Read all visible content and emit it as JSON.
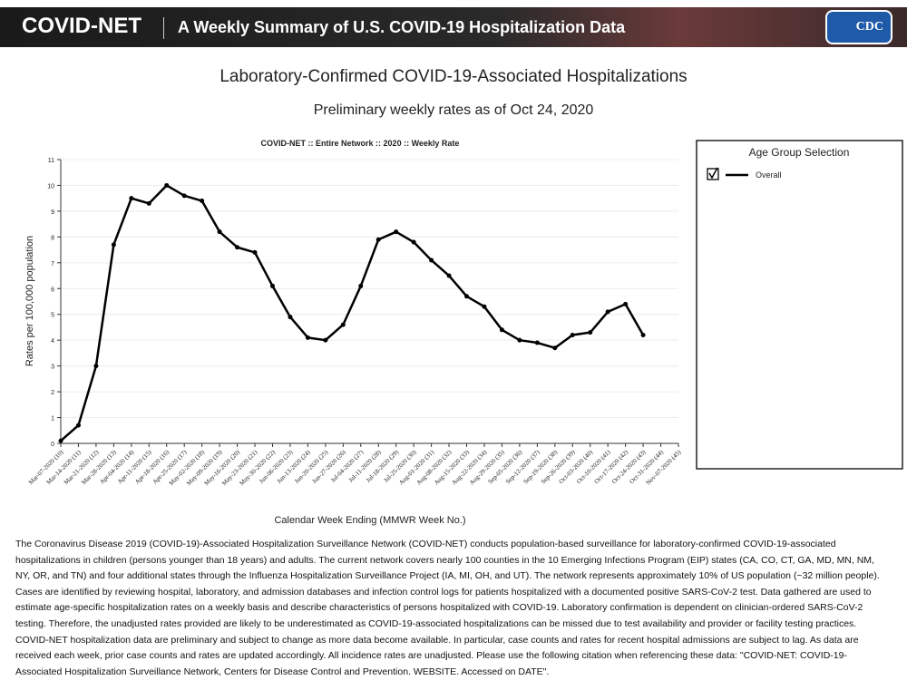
{
  "header": {
    "brand": "COVID-NET",
    "title": "A Weekly Summary of U.S. COVID-19 Hospitalization Data",
    "logo": "CDC"
  },
  "page_title": "Laboratory-Confirmed COVID-19-Associated Hospitalizations",
  "page_subtitle": "Preliminary weekly rates as of Oct 24, 2020",
  "chart_data": {
    "type": "line",
    "title": "COVID-NET :: Entire Network :: 2020 :: Weekly Rate",
    "y_label": "Rates per 100,000 population",
    "x_label": "Calendar Week Ending (MMWR Week No.)",
    "categories": [
      "Mar-07-2020 (10)",
      "Mar-14-2020 (11)",
      "Mar-21-2020 (12)",
      "Mar-28-2020 (13)",
      "Apr-04-2020 (14)",
      "Apr-11-2020 (15)",
      "Apr-18-2020 (16)",
      "Apr-25-2020 (17)",
      "May-02-2020 (18)",
      "May-09-2020 (19)",
      "May-16-2020 (20)",
      "May-23-2020 (21)",
      "May-30-2020 (22)",
      "Jun-06-2020 (23)",
      "Jun-13-2020 (24)",
      "Jun-20-2020 (25)",
      "Jun-27-2020 (26)",
      "Jul-04-2020 (27)",
      "Jul-11-2020 (28)",
      "Jul-18-2020 (29)",
      "Jul-25-2020 (30)",
      "Aug-01-2020 (31)",
      "Aug-08-2020 (32)",
      "Aug-15-2020 (33)",
      "Aug-22-2020 (34)",
      "Aug-29-2020 (35)",
      "Sep-05-2020 (36)",
      "Sep-12-2020 (37)",
      "Sep-19-2020 (38)",
      "Sep-26-2020 (39)",
      "Oct-03-2020 (40)",
      "Oct-10-2020 (41)",
      "Oct-17-2020 (42)",
      "Oct-24-2020 (43)",
      "Oct-31-2020 (44)",
      "Nov-07-2020 (45)"
    ],
    "series": [
      {
        "name": "Overall",
        "color": "#000000",
        "values": [
          0.1,
          0.7,
          3.0,
          7.7,
          9.5,
          9.3,
          10.0,
          9.6,
          9.4,
          8.2,
          7.6,
          7.4,
          6.1,
          4.9,
          4.1,
          4.0,
          4.6,
          6.1,
          7.9,
          8.2,
          7.8,
          7.1,
          6.5,
          5.7,
          5.3,
          4.4,
          4.0,
          3.9,
          3.7,
          4.2,
          4.3,
          5.1,
          5.4,
          4.2,
          null,
          null
        ]
      }
    ],
    "ylim": [
      0,
      11
    ],
    "yticks": [
      0,
      1,
      2,
      3,
      4,
      5,
      6,
      7,
      8,
      9,
      10,
      11
    ],
    "grid": true
  },
  "legend_panel": {
    "title": "Age Group Selection"
  },
  "description": "The Coronavirus Disease 2019 (COVID-19)-Associated Hospitalization Surveillance Network (COVID-NET) conducts population-based surveillance for laboratory-confirmed COVID-19-associated hospitalizations in children (persons younger than 18 years) and adults. The current network covers nearly 100 counties in the 10 Emerging Infections Program (EIP) states (CA, CO, CT, GA, MD, MN, NM, NY, OR, and TN) and four additional states through the Influenza Hospitalization Surveillance Project (IA, MI, OH, and UT). The network represents approximately 10% of US population (~32 million people). Cases are identified by reviewing hospital, laboratory, and admission databases and infection control logs for patients hospitalized with a documented positive SARS-CoV-2 test. Data gathered are used to estimate age-specific hospitalization rates on a weekly basis and describe characteristics of persons hospitalized with COVID-19. Laboratory confirmation is dependent on clinician-ordered SARS-CoV-2 testing. Therefore, the unadjusted rates provided are likely to be underestimated as COVID-19-associated hospitalizations can be missed due to test availability and provider or facility testing practices. COVID-NET hospitalization data are preliminary and subject to change as more data become available. In particular, case counts and rates for recent hospital admissions are subject to lag. As data are received each week, prior case counts and rates are updated accordingly. All incidence rates are unadjusted. Please use the following citation when referencing these data: \"COVID-NET: COVID-19-Associated Hospitalization Surveillance Network, Centers for Disease Control and Prevention. WEBSITE. Accessed on DATE\"."
}
